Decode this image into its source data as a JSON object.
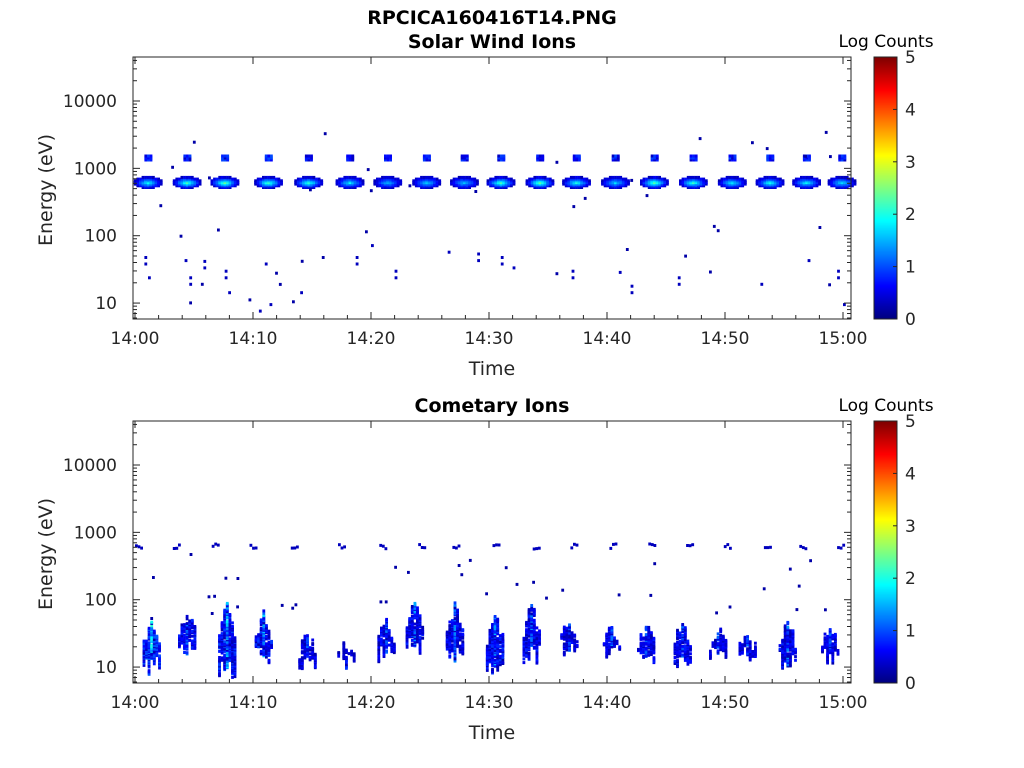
{
  "figure_title": "RPCICA160416T14.PNG",
  "colors": {
    "low": "#00008f",
    "mid": "#00ffff",
    "high": "#800000",
    "axis": "#262626"
  },
  "chart_data": [
    {
      "type": "heatmap",
      "title": "Solar Wind Ions",
      "xlabel": "Time",
      "ylabel": "Energy (eV)",
      "x_ticks": [
        "14:00",
        "14:10",
        "14:20",
        "14:30",
        "14:40",
        "14:50",
        "15:00"
      ],
      "y_ticks": [
        "10",
        "100",
        "1000",
        "10000"
      ],
      "y_scale": "log",
      "colorbar": {
        "label": "Log Counts",
        "ticks": [
          "0",
          "1",
          "2",
          "3",
          "4",
          "5"
        ],
        "range": [
          0,
          5
        ],
        "colormap": "jet"
      },
      "main_energy_eV": 650,
      "secondary_energy_eV": 1500,
      "beam_times_min": [
        1.0,
        4.3,
        7.5,
        11.2,
        14.6,
        18.1,
        21.3,
        24.6,
        27.8,
        30.9,
        34.2,
        37.3,
        40.6,
        43.9,
        47.2,
        50.5,
        53.7,
        56.8,
        59.8
      ],
      "beam_peak_log_counts": [
        1.6,
        1.9,
        2.0,
        1.9,
        1.8,
        1.5,
        1.2,
        1.4,
        1.3,
        1.9,
        2.0,
        1.7,
        1.4,
        2.0,
        1.8,
        1.5,
        1.7,
        1.6,
        1.5
      ],
      "low_energy_hits": [
        [
          0.8,
          40
        ],
        [
          1.1,
          25
        ],
        [
          4.2,
          45
        ],
        [
          4.6,
          20
        ],
        [
          5.8,
          35
        ],
        [
          7.6,
          25
        ],
        [
          7.9,
          15
        ],
        [
          11.0,
          40
        ],
        [
          11.4,
          10
        ],
        [
          14.0,
          15
        ],
        [
          18.7,
          40
        ],
        [
          22.0,
          25
        ],
        [
          26.5,
          60
        ],
        [
          29.0,
          45
        ],
        [
          31.0,
          40
        ],
        [
          32.0,
          35
        ],
        [
          37.0,
          25
        ],
        [
          41.0,
          30
        ],
        [
          42.0,
          15
        ],
        [
          53.0,
          20
        ],
        [
          57.0,
          45
        ],
        [
          59.5,
          25
        ],
        [
          60.0,
          10
        ],
        [
          10.5,
          8
        ],
        [
          20.0,
          75
        ],
        [
          46.0,
          20
        ]
      ]
    },
    {
      "type": "heatmap",
      "title": "Cometary Ions",
      "xlabel": "Time",
      "ylabel": "Energy (eV)",
      "x_ticks": [
        "14:00",
        "14:10",
        "14:20",
        "14:30",
        "14:40",
        "14:50",
        "15:00"
      ],
      "y_ticks": [
        "10",
        "100",
        "1000",
        "10000"
      ],
      "y_scale": "log",
      "colorbar": {
        "label": "Log Counts",
        "ticks": [
          "0",
          "1",
          "2",
          "3",
          "4",
          "5"
        ],
        "range": [
          0,
          5
        ],
        "colormap": "jet"
      },
      "upper_band_energy_eV": 650,
      "upper_band_times_min": [
        0.3,
        3.5,
        6.8,
        10.0,
        13.5,
        17.5,
        21.0,
        24.3,
        27.2,
        30.6,
        34.0,
        37.2,
        40.5,
        43.8,
        47.0,
        50.2,
        53.6,
        56.6,
        59.8
      ],
      "bursts": [
        {
          "t": 1.3,
          "top": 60,
          "bottom": 8,
          "level": 2.0
        },
        {
          "t": 4.3,
          "top": 90,
          "bottom": 15,
          "level": 1.3
        },
        {
          "t": 7.7,
          "top": 120,
          "bottom": 7,
          "level": 1.6
        },
        {
          "t": 10.8,
          "top": 80,
          "bottom": 12,
          "level": 1.5
        },
        {
          "t": 14.5,
          "top": 40,
          "bottom": 8,
          "level": 1.0
        },
        {
          "t": 17.8,
          "top": 30,
          "bottom": 10,
          "level": 0.8
        },
        {
          "t": 21.2,
          "top": 70,
          "bottom": 12,
          "level": 1.1
        },
        {
          "t": 23.6,
          "top": 110,
          "bottom": 15,
          "level": 1.3
        },
        {
          "t": 27.0,
          "top": 100,
          "bottom": 12,
          "level": 1.2
        },
        {
          "t": 30.4,
          "top": 80,
          "bottom": 8,
          "level": 1.4
        },
        {
          "t": 33.5,
          "top": 100,
          "bottom": 12,
          "level": 1.3
        },
        {
          "t": 36.7,
          "top": 60,
          "bottom": 15,
          "level": 1.0
        },
        {
          "t": 40.3,
          "top": 50,
          "bottom": 12,
          "level": 1.1
        },
        {
          "t": 43.2,
          "top": 60,
          "bottom": 10,
          "level": 1.2
        },
        {
          "t": 46.3,
          "top": 60,
          "bottom": 10,
          "level": 1.2
        },
        {
          "t": 49.3,
          "top": 50,
          "bottom": 12,
          "level": 1.0
        },
        {
          "t": 51.8,
          "top": 40,
          "bottom": 12,
          "level": 1.0
        },
        {
          "t": 55.2,
          "top": 60,
          "bottom": 10,
          "level": 1.2
        },
        {
          "t": 58.8,
          "top": 50,
          "bottom": 12,
          "level": 1.1
        }
      ]
    }
  ]
}
